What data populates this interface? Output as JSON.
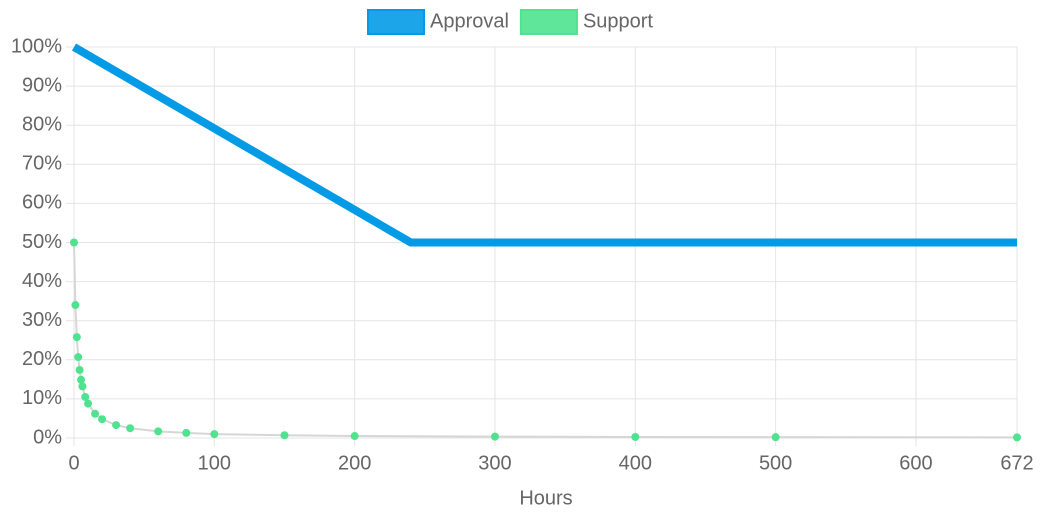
{
  "chart_data": {
    "type": "line",
    "x_label": "Hours",
    "legend": "top",
    "xlim": [
      0,
      672
    ],
    "xticks": [
      0,
      100,
      200,
      300,
      400,
      500,
      600,
      672
    ],
    "ylim": [
      0,
      100
    ],
    "yticks": [
      {
        "value": 0,
        "label": "0%"
      },
      {
        "value": 10,
        "label": "10%"
      },
      {
        "value": 20,
        "label": "20%"
      },
      {
        "value": 30,
        "label": "30%"
      },
      {
        "value": 40,
        "label": "40%"
      },
      {
        "value": 50,
        "label": "50%"
      },
      {
        "value": 60,
        "label": "60%"
      },
      {
        "value": 70,
        "label": "70%"
      },
      {
        "value": 80,
        "label": "80%"
      },
      {
        "value": 90,
        "label": "90%"
      },
      {
        "value": 100,
        "label": "100%"
      }
    ],
    "grid": true,
    "series": [
      {
        "name": "Approval",
        "color": "#039be5",
        "x": [
          0,
          240,
          672
        ],
        "values": [
          100,
          50,
          50
        ]
      },
      {
        "name": "Support",
        "color": "#4fe38f",
        "x": [
          0,
          1,
          2,
          3,
          4,
          5,
          6,
          8,
          10,
          15,
          20,
          30,
          40,
          60,
          80,
          100,
          150,
          200,
          300,
          400,
          500,
          672
        ],
        "values": [
          50,
          34,
          25.8,
          20.7,
          17.4,
          14.9,
          13.2,
          10.5,
          8.8,
          6.2,
          4.8,
          3.3,
          2.5,
          1.7,
          1.3,
          1,
          0.7,
          0.5,
          0.35,
          0.27,
          0.21,
          0.16
        ]
      }
    ]
  }
}
